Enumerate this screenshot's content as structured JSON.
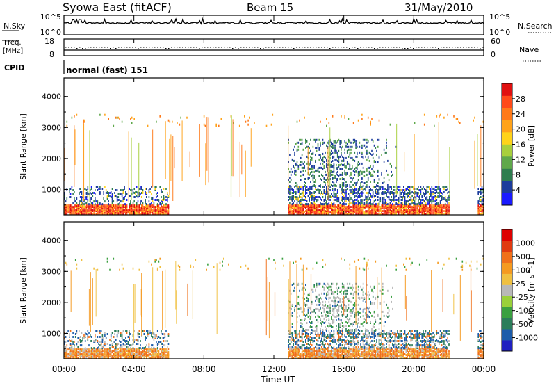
{
  "header": {
    "station": "Syowa East (fitACF)",
    "beam": "Beam 15",
    "date": "31/May/2010"
  },
  "top_panels": {
    "nsky_label": "N.Sky",
    "nsky_ticks": [
      "10^5",
      "10^0"
    ],
    "nsearch_label": "N.Search",
    "nsearch_ticks": [
      "10^5",
      "10^0"
    ],
    "freq_label_line1": "Freq.",
    "freq_label_line2": "[MHz]",
    "freq_ticks": [
      "18",
      "8"
    ],
    "nave_label": "Nave",
    "nave_ticks": [
      "60",
      "0"
    ],
    "cpid_label": "CPID",
    "cpid_value": "normal (fast) 151"
  },
  "x_axis": {
    "label": "Time UT",
    "ticks": [
      "00:00",
      "04:00",
      "08:00",
      "12:00",
      "16:00",
      "20:00",
      "00:00"
    ]
  },
  "chart_data": [
    {
      "type": "heatmap",
      "name": "power",
      "ylabel": "Slant Range [km]",
      "ylim": [
        180,
        4600
      ],
      "yticks": [
        "1000",
        "2000",
        "3000",
        "4000"
      ],
      "colorbar_label": "Power [dB]",
      "colorbar_ticks": [
        "28",
        "24",
        "20",
        "16",
        "12",
        "8",
        "4"
      ],
      "colors": [
        "#1a1aff",
        "#1c3c9c",
        "#2f7d4f",
        "#5fa84a",
        "#a8cf3c",
        "#ffd31a",
        "#ffa31a",
        "#ff7a1a",
        "#ff4a1a",
        "#e01010"
      ]
    },
    {
      "type": "heatmap",
      "name": "velocity",
      "ylabel": "Slant Range [km]",
      "ylim": [
        180,
        4600
      ],
      "yticks": [
        "1000",
        "2000",
        "3000",
        "4000"
      ],
      "colorbar_label": "Velocity [m s^-1]",
      "colorbar_ticks": [
        "1000",
        "500",
        "100",
        "25",
        "-25",
        "-100",
        "-500",
        "-1000"
      ],
      "colors": [
        "#2020c0",
        "#1c5caa",
        "#2b7d5a",
        "#3aa040",
        "#9ad03a",
        "#b8b8b8",
        "#f0c040",
        "#f59a20",
        "#f0701a",
        "#e03a10",
        "#dd0000"
      ]
    }
  ]
}
